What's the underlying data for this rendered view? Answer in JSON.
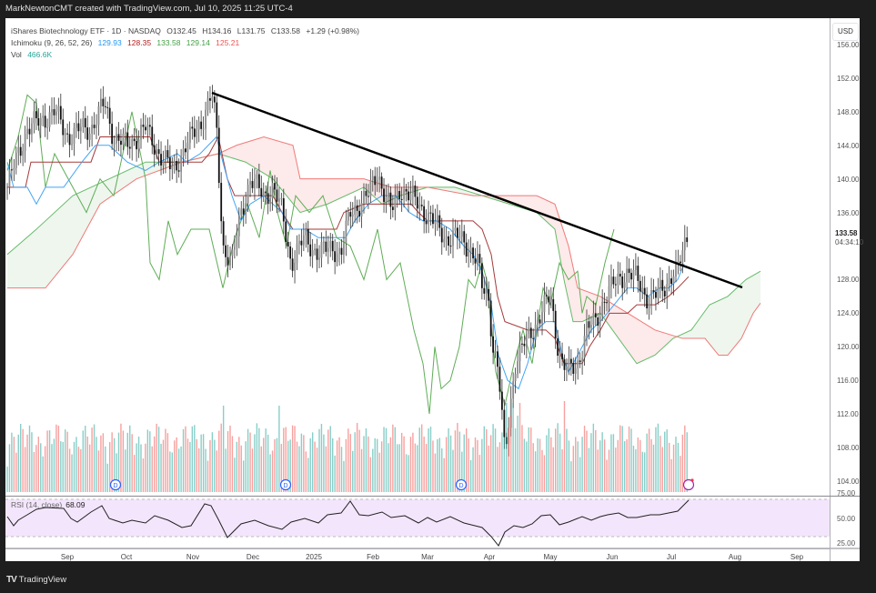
{
  "header": {
    "attribution": "MarkNewtonCMT created with TradingView.com, Jul 10, 2025 11:25 UTC-4"
  },
  "legend": {
    "symbol_line": "iShares Biotechnology ETF · 1D · NASDAQ",
    "open": "O132.45",
    "high": "H134.16",
    "low": "L131.75",
    "close": "C133.58",
    "change": "+1.29 (+0.98%)",
    "ichimoku_label": "Ichimoku (9, 26, 52, 26)",
    "ichimoku_values": [
      {
        "value": "129.93",
        "color": "#2196f3"
      },
      {
        "value": "128.35",
        "color": "#b71c1c"
      },
      {
        "value": "133.58",
        "color": "#43a047"
      },
      {
        "value": "129.14",
        "color": "#43a047"
      },
      {
        "value": "125.21",
        "color": "#ef5350"
      }
    ],
    "vol_label": "Vol",
    "vol_value": "466.6K",
    "vol_color": "#26a69a"
  },
  "price_axis": {
    "currency": "USD",
    "ticks": [
      "156.00",
      "152.00",
      "148.00",
      "144.00",
      "140.00",
      "136.00",
      "128.00",
      "124.00",
      "120.00",
      "116.00",
      "112.00",
      "108.00",
      "104.00"
    ],
    "last_price": "133.58",
    "countdown": "04:34:10"
  },
  "rsi": {
    "label": "RSI (14, close)",
    "value": "68.09",
    "ticks": [
      "75.00",
      "50.00",
      "25.00"
    ]
  },
  "time_axis": {
    "labels": [
      "Sep",
      "Oct",
      "Nov",
      "Dec",
      "2025",
      "Feb",
      "Mar",
      "Apr",
      "May",
      "Jun",
      "Jul",
      "Aug",
      "Sep"
    ]
  },
  "footer": {
    "brand": "TradingView"
  },
  "colors": {
    "up_volume": "#26a69a",
    "down_volume": "#ef5350",
    "tenkan": "#2196f3",
    "kijun": "#b71c1c",
    "chikou": "#43a047",
    "span_a": "#43a047",
    "span_b": "#ef5350",
    "trendline": "#000000",
    "rsi_band": "#f3e5fc"
  },
  "chart_data": [
    {
      "type": "candlestick",
      "title": "iShares Biotechnology ETF · 1D · NASDAQ (IBB)",
      "xlabel": "",
      "ylabel": "USD",
      "ylim": [
        103,
        157
      ],
      "x_ticks": [
        "Sep",
        "Oct",
        "Nov",
        "Dec",
        "2025",
        "Feb",
        "Mar",
        "Apr",
        "May",
        "Jun",
        "Jul",
        "Aug",
        "Sep"
      ],
      "y_ticks": [
        104,
        108,
        112,
        116,
        120,
        124,
        128,
        136,
        140,
        144,
        148,
        152,
        156
      ],
      "last": {
        "open": 132.45,
        "high": 134.16,
        "low": 131.75,
        "close": 133.58,
        "change": 1.29,
        "change_pct": 0.98
      },
      "approx_close_by_month": {
        "Aug 2024": 140,
        "Sep 2024": 146,
        "Oct 2024": 144,
        "Nov 2024": 149,
        "Dec 2024": 136,
        "Jan 2025": 134,
        "Feb 2025": 140,
        "Mar 2025": 134,
        "Apr 2025": 112,
        "May 2025": 118,
        "Jun 2025": 127,
        "Jul 2025": 133.58
      },
      "annotations": [
        {
          "type": "trendline",
          "from": {
            "date": "Nov 2024",
            "price": 150.0
          },
          "to": {
            "date": "Aug 2025",
            "price": 127.0
          },
          "color": "#000000"
        },
        {
          "type": "dividend_markers",
          "dates": [
            "Sep 2024",
            "Dec 2024",
            "Mar 2025"
          ],
          "label": "D"
        }
      ],
      "indicators": {
        "ichimoku": {
          "params": [
            9,
            26,
            52,
            26
          ],
          "tenkan": 129.93,
          "kijun": 128.35,
          "chikou": 133.58,
          "span_a": 129.14,
          "span_b": 125.21
        },
        "volume": {
          "last": "466.6K"
        }
      }
    },
    {
      "type": "line",
      "title": "RSI (14, close)",
      "ylim": [
        20,
        75
      ],
      "y_ticks": [
        25,
        50,
        75
      ],
      "bands": [
        30,
        70
      ],
      "last": 68.09,
      "approx_monthly": {
        "Aug 2024": 45,
        "Sep 2024": 62,
        "Oct 2024": 48,
        "Nov 2024": 68,
        "Dec 2024": 32,
        "Jan 2025": 45,
        "Feb 2025": 66,
        "Mar 2025": 48,
        "Apr 2025": 23,
        "May 2025": 55,
        "Jun 2025": 56,
        "Jul 2025": 68
      }
    }
  ]
}
